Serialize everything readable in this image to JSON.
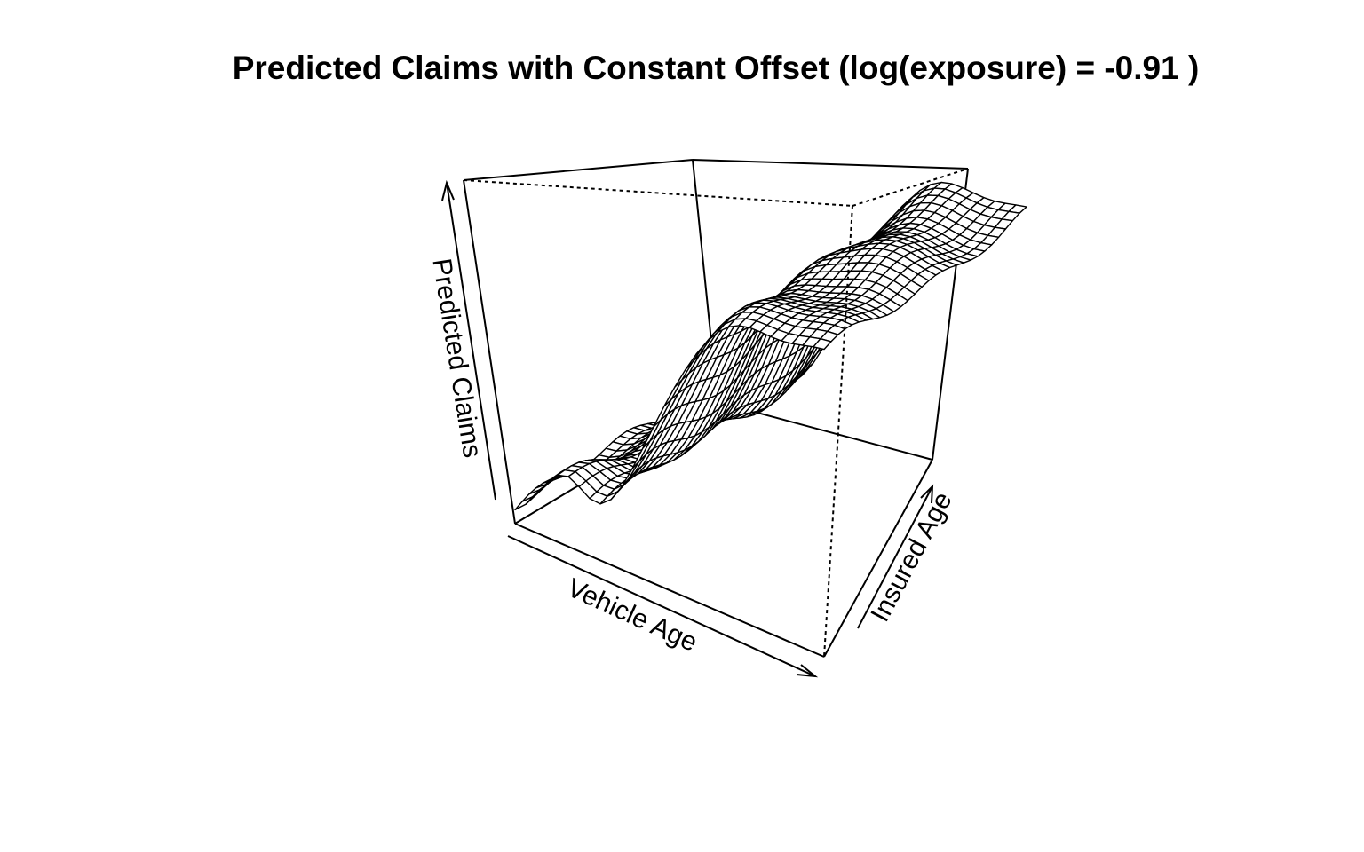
{
  "chart_data": {
    "type": "surface",
    "title": "Predicted Claims with Constant Offset (log(exposure) = -0.91 )",
    "xlabel": "Vehicle Age",
    "ylabel": "Insured Age",
    "zlabel": "Predicted Claims",
    "grid_size": [
      30,
      30
    ],
    "axis_ticks": false,
    "box": true,
    "surface_color": "#ffffff",
    "line_color": "#000000"
  }
}
